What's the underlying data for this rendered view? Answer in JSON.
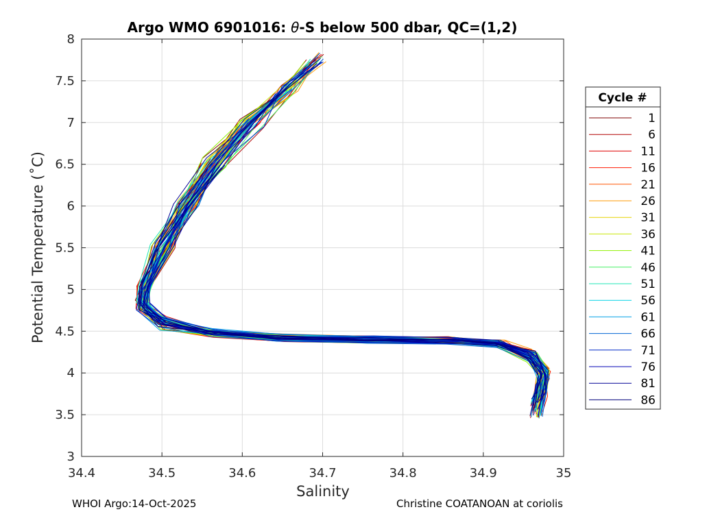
{
  "chart_data": {
    "type": "line",
    "title_prefix": "Argo WMO 6901016: ",
    "title_symbol": "θ",
    "title_suffix": "-S below 500 dbar,  QC=(1,2)",
    "xlabel": "Salinity",
    "ylabel": "Potential Temperature (˚C)",
    "xlim": [
      34.4,
      35.0
    ],
    "ylim": [
      3.0,
      8.0
    ],
    "xticks": [
      34.4,
      34.5,
      34.6,
      34.7,
      34.8,
      34.9,
      35.0
    ],
    "xtick_labels": [
      "34.4",
      "34.5",
      "34.6",
      "34.7",
      "34.8",
      "34.9",
      "35"
    ],
    "yticks": [
      3.0,
      3.5,
      4.0,
      4.5,
      5.0,
      5.5,
      6.0,
      6.5,
      7.0,
      7.5,
      8.0
    ],
    "ytick_labels": [
      "3",
      "3.5",
      "4",
      "4.5",
      "5",
      "5.5",
      "6",
      "6.5",
      "7",
      "7.5",
      "8"
    ],
    "grid": true,
    "legend_title": "Cycle #",
    "legend_position": "right",
    "legend": [
      {
        "cycle": "1",
        "color": "#7f0000"
      },
      {
        "cycle": "6",
        "color": "#b00000"
      },
      {
        "cycle": "11",
        "color": "#e00000"
      },
      {
        "cycle": "16",
        "color": "#ff1a00"
      },
      {
        "cycle": "21",
        "color": "#ff5500"
      },
      {
        "cycle": "26",
        "color": "#ff9900"
      },
      {
        "cycle": "31",
        "color": "#e6d200"
      },
      {
        "cycle": "36",
        "color": "#c8e600"
      },
      {
        "cycle": "41",
        "color": "#8ef000"
      },
      {
        "cycle": "46",
        "color": "#40f060"
      },
      {
        "cycle": "51",
        "color": "#1ee6b4"
      },
      {
        "cycle": "56",
        "color": "#00d2e6"
      },
      {
        "cycle": "61",
        "color": "#00a0e6"
      },
      {
        "cycle": "66",
        "color": "#0064d2"
      },
      {
        "cycle": "71",
        "color": "#0028c8"
      },
      {
        "cycle": "76",
        "color": "#0000b4"
      },
      {
        "cycle": "81",
        "color": "#000096"
      },
      {
        "cycle": "86",
        "color": "#00007d"
      }
    ],
    "series_template": {
      "salinity": [
        34.69,
        34.655,
        34.61,
        34.565,
        34.53,
        34.5,
        34.478,
        34.476,
        34.5,
        34.56,
        34.65,
        34.76,
        34.86,
        34.92,
        34.96,
        34.975,
        34.972,
        34.966
      ],
      "theta": [
        7.76,
        7.4,
        7.0,
        6.5,
        6.0,
        5.5,
        5.0,
        4.8,
        4.6,
        4.48,
        4.42,
        4.4,
        4.39,
        4.35,
        4.2,
        4.0,
        3.8,
        3.55
      ]
    }
  },
  "footer": {
    "left": "WHOI Argo:14-Oct-2025",
    "right": "Christine COATANOAN at coriolis"
  }
}
